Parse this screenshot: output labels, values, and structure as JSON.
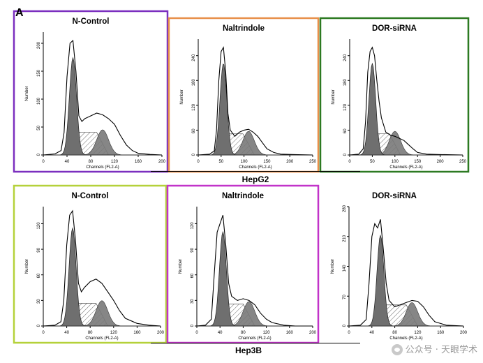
{
  "panel_label": "A",
  "group_labels": {
    "top": "HepG2",
    "bottom": "Hep3B"
  },
  "watermark": {
    "text": "公众号 · 天眼学术",
    "icon": "wechat-icon"
  },
  "colors": {
    "purple": "#7b2fbf",
    "orange": "#e8904a",
    "green": "#2d7a22",
    "lime": "#b5d13a",
    "magenta": "#c233c9",
    "none": "none"
  },
  "chart_data": [
    {
      "type": "area",
      "title": "N-Control",
      "frame_color": "#7b2fbf",
      "xlabel": "Channels (FL2-A)",
      "ylabel": "Number",
      "xlim": [
        0,
        200
      ],
      "ylim": [
        0,
        220
      ],
      "xticks": [
        0,
        40,
        80,
        120,
        160,
        200
      ],
      "yticks": [
        0,
        50,
        100,
        150,
        200
      ],
      "x": [
        0,
        20,
        30,
        35,
        40,
        45,
        50,
        55,
        60,
        65,
        70,
        80,
        90,
        100,
        110,
        120,
        130,
        140,
        150,
        160,
        180,
        200
      ],
      "y": [
        0,
        2,
        8,
        40,
        140,
        200,
        205,
        150,
        70,
        60,
        65,
        70,
        75,
        72,
        65,
        55,
        35,
        18,
        8,
        3,
        1,
        0
      ]
    },
    {
      "type": "area",
      "title": "Naltrindole",
      "frame_color": "#e8904a",
      "xlabel": "Channels (FL2-A)",
      "ylabel": "Number",
      "xlim": [
        0,
        250
      ],
      "ylim": [
        0,
        280
      ],
      "xticks": [
        0,
        50,
        100,
        150,
        200,
        250
      ],
      "yticks": [
        0,
        60,
        120,
        180,
        240
      ],
      "x": [
        0,
        25,
        35,
        40,
        45,
        50,
        55,
        60,
        65,
        70,
        80,
        90,
        100,
        110,
        120,
        130,
        140,
        150,
        165,
        180,
        210,
        250
      ],
      "y": [
        0,
        2,
        10,
        60,
        180,
        250,
        260,
        200,
        100,
        60,
        45,
        55,
        60,
        62,
        55,
        45,
        30,
        15,
        6,
        2,
        1,
        0
      ]
    },
    {
      "type": "area",
      "title": "DOR-siRNA",
      "frame_color": "#2d7a22",
      "xlabel": "Channels (FL2-A)",
      "ylabel": "Number",
      "xlim": [
        0,
        250
      ],
      "ylim": [
        0,
        280
      ],
      "xticks": [
        0,
        50,
        100,
        150,
        200,
        250
      ],
      "yticks": [
        0,
        60,
        120,
        180,
        240
      ],
      "x": [
        0,
        20,
        30,
        35,
        40,
        45,
        50,
        55,
        60,
        65,
        70,
        80,
        90,
        100,
        110,
        120,
        130,
        140,
        150,
        170,
        200,
        250
      ],
      "y": [
        0,
        2,
        15,
        80,
        200,
        250,
        260,
        240,
        180,
        130,
        90,
        55,
        48,
        45,
        40,
        35,
        25,
        15,
        6,
        2,
        1,
        0
      ]
    },
    {
      "type": "area",
      "title": "N-Control",
      "frame_color": "#b5d13a",
      "xlabel": "Channels (FL2-A)",
      "ylabel": "Number",
      "xlim": [
        0,
        200
      ],
      "ylim": [
        0,
        140
      ],
      "xticks": [
        0,
        40,
        80,
        120,
        160,
        200
      ],
      "yticks": [
        0,
        30,
        60,
        90,
        120
      ],
      "x": [
        0,
        20,
        30,
        35,
        40,
        45,
        50,
        55,
        60,
        65,
        70,
        80,
        90,
        100,
        110,
        120,
        130,
        140,
        160,
        180,
        200
      ],
      "y": [
        0,
        1,
        5,
        30,
        95,
        130,
        135,
        100,
        50,
        40,
        45,
        52,
        55,
        50,
        40,
        30,
        18,
        9,
        3,
        1,
        0
      ]
    },
    {
      "type": "area",
      "title": "Naltrindole",
      "frame_color": "#c233c9",
      "xlabel": "Channels (FL2-A)",
      "ylabel": "Number",
      "xlim": [
        0,
        200
      ],
      "ylim": [
        0,
        140
      ],
      "xticks": [
        0,
        40,
        80,
        120,
        160,
        200
      ],
      "yticks": [
        0,
        30,
        60,
        90,
        120
      ],
      "x": [
        0,
        15,
        25,
        30,
        35,
        40,
        45,
        50,
        55,
        60,
        70,
        80,
        90,
        100,
        110,
        120,
        130,
        150,
        170,
        200
      ],
      "y": [
        0,
        1,
        8,
        60,
        110,
        120,
        130,
        95,
        50,
        35,
        30,
        32,
        30,
        25,
        15,
        8,
        4,
        1,
        0,
        0
      ]
    },
    {
      "type": "area",
      "title": "DOR-siRNA",
      "frame_color": "none",
      "xlabel": "Channels (FL2-A)",
      "ylabel": "Number",
      "xlim": [
        0,
        200
      ],
      "ylim": [
        0,
        280
      ],
      "xticks": [
        0,
        40,
        80,
        120,
        160,
        200
      ],
      "yticks": [
        0,
        70,
        140,
        210,
        280
      ],
      "x": [
        0,
        20,
        30,
        35,
        40,
        45,
        50,
        55,
        60,
        65,
        70,
        80,
        90,
        100,
        110,
        120,
        130,
        140,
        150,
        170,
        200
      ],
      "y": [
        0,
        2,
        15,
        100,
        210,
        240,
        230,
        250,
        180,
        100,
        60,
        45,
        50,
        55,
        60,
        58,
        45,
        25,
        10,
        2,
        0
      ]
    }
  ]
}
